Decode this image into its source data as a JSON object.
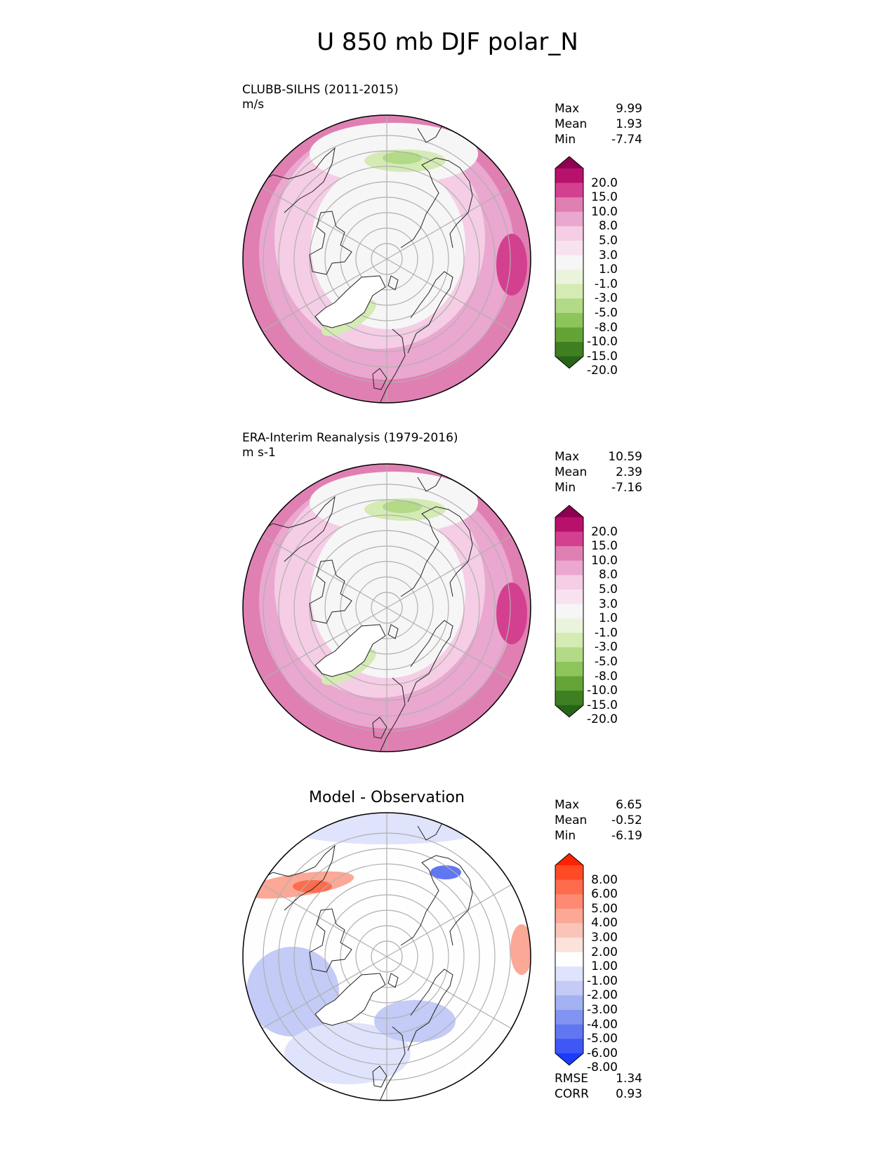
{
  "figure_title": "U 850 mb DJF polar_N",
  "panels": [
    {
      "name": "model",
      "title": "CLUBB-SILHS (2011-2015)",
      "units": "m/s",
      "stats": [
        {
          "label": "Max",
          "value": "9.99"
        },
        {
          "label": "Mean",
          "value": "1.93"
        },
        {
          "label": "Min",
          "value": "-7.74"
        }
      ]
    },
    {
      "name": "observation",
      "title": "ERA-Interim Reanalysis (1979-2016)",
      "units": "m s-1",
      "stats": [
        {
          "label": "Max",
          "value": "10.59"
        },
        {
          "label": "Mean",
          "value": "2.39"
        },
        {
          "label": "Min",
          "value": "-7.16"
        }
      ]
    },
    {
      "name": "difference",
      "title": "Model - Observation",
      "stats": [
        {
          "label": "Max",
          "value": "6.65"
        },
        {
          "label": "Mean",
          "value": "-0.52"
        },
        {
          "label": "Min",
          "value": "-6.19"
        }
      ],
      "metrics": [
        {
          "label": "RMSE",
          "value": "1.34"
        },
        {
          "label": "CORR",
          "value": "0.93"
        }
      ]
    }
  ],
  "colorbar_main": {
    "labels": [
      "20.0",
      "15.0",
      "10.0",
      "8.0",
      "5.0",
      "3.0",
      "1.0",
      "-1.0",
      "-3.0",
      "-5.0",
      "-8.0",
      "-10.0",
      "-15.0",
      "-20.0"
    ],
    "colors": [
      "#8e0152",
      "#b8116c",
      "#d3408f",
      "#e07fb2",
      "#eaa7cf",
      "#f5cde5",
      "#f8e2ef",
      "#f6f6f6",
      "#eaf4dc",
      "#d4ebb4",
      "#b2da87",
      "#8ec45c",
      "#64a437",
      "#3e7f22",
      "#276419"
    ]
  },
  "colorbar_diff": {
    "labels": [
      "8.00",
      "6.00",
      "5.00",
      "4.00",
      "3.00",
      "2.00",
      "1.00",
      "-1.00",
      "-2.00",
      "-3.00",
      "-4.00",
      "-5.00",
      "-6.00",
      "-8.00"
    ],
    "colors": [
      "#ff2200",
      "#ff4a26",
      "#ff6c4d",
      "#fe8a73",
      "#fca896",
      "#fac5b8",
      "#fbe2db",
      "#fefefe",
      "#dfe3fb",
      "#c3cbf6",
      "#a4b1f3",
      "#8294f1",
      "#6177f2",
      "#3f58f5",
      "#1a3cfb"
    ]
  },
  "map_fill": {
    "main_outer": "#e07fb2",
    "main_ring": "#eaa7cf",
    "main_mid": "#f5cde5",
    "main_core": "#f6f6f6",
    "green_light": "#d4ebb4",
    "green_mid": "#b2da87",
    "diff_blue": "#c3cbf6",
    "diff_blue_light": "#dfe3fb",
    "diff_red": "#fca896",
    "diff_red_strong": "#ff6c4d",
    "grid": "#b0b0b0",
    "coast": "#222222"
  }
}
